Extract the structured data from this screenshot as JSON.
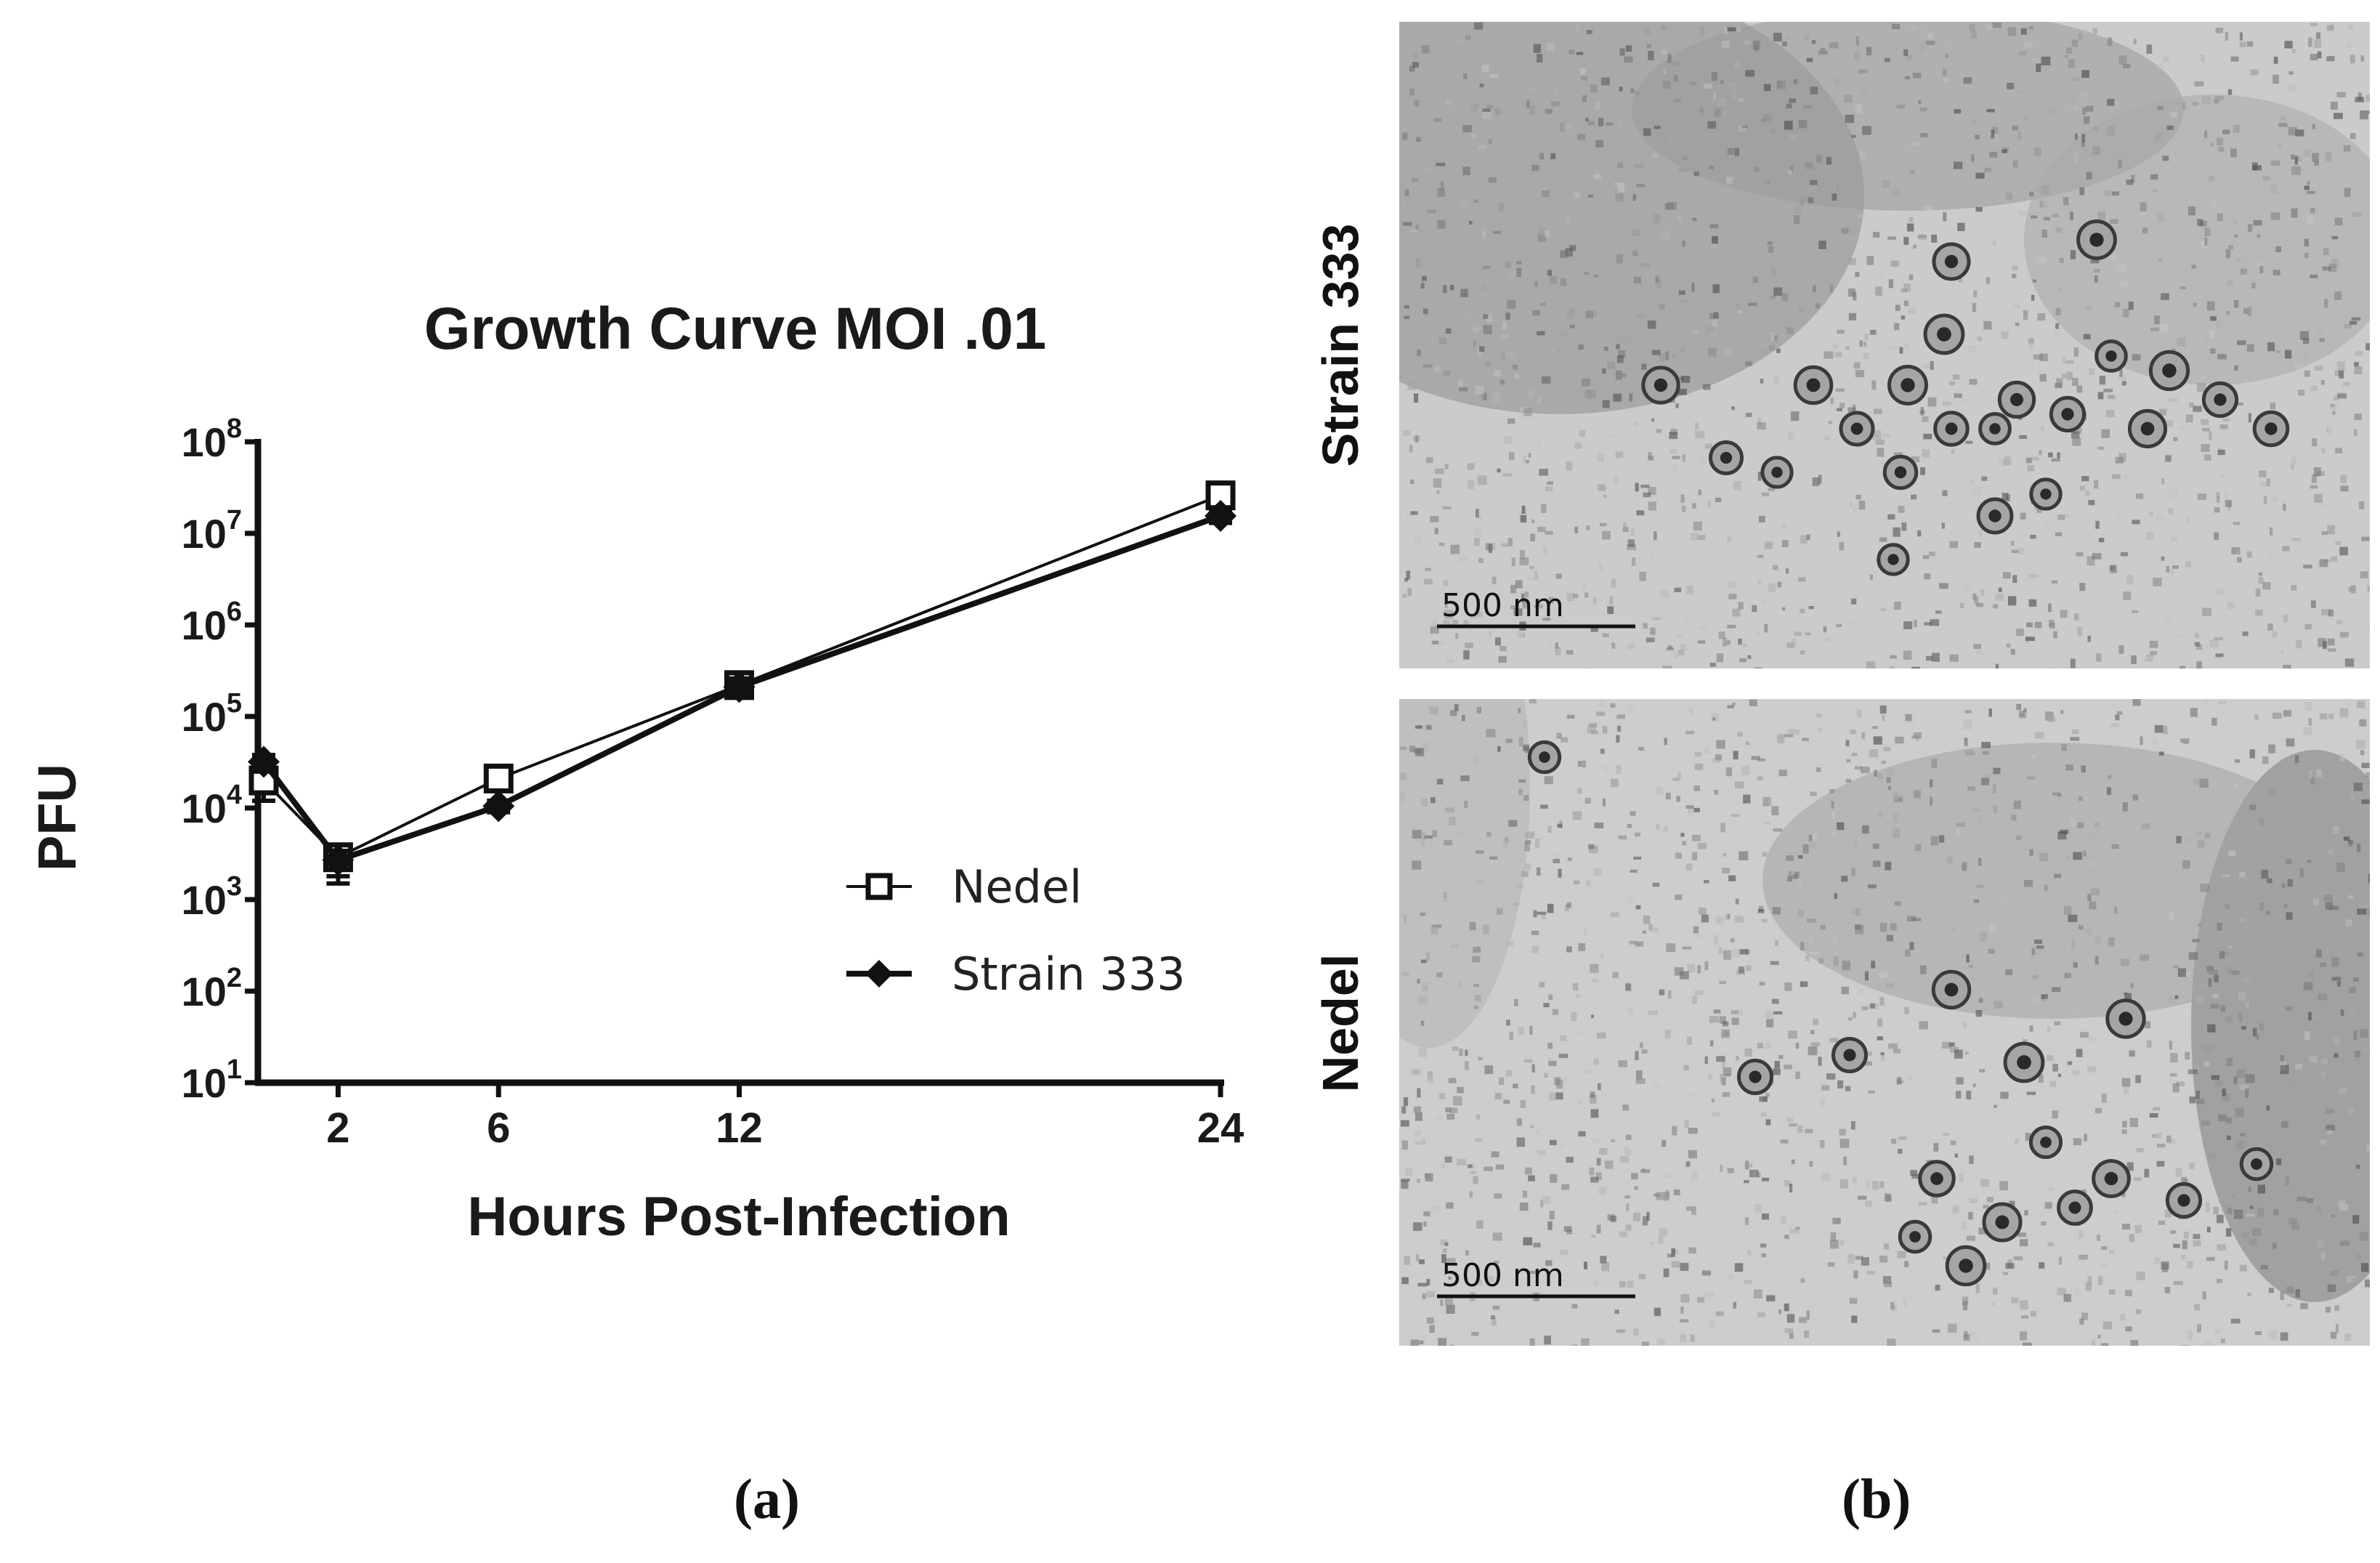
{
  "figure": {
    "panel_a_label": "(a)",
    "panel_b_label": "(b)"
  },
  "chart_data": {
    "type": "line",
    "title": "Growth  Curve MOI .01",
    "xlabel": "Hours Post-Infection",
    "ylabel": "PFU",
    "x_ticks": [
      "2",
      "6",
      "12",
      "24"
    ],
    "x_tick_values": [
      2,
      6,
      12,
      24
    ],
    "xlim": [
      0,
      24
    ],
    "y_scale": "log",
    "y_ticks": [
      {
        "base": "10",
        "exp": "1"
      },
      {
        "base": "10",
        "exp": "2"
      },
      {
        "base": "10",
        "exp": "3"
      },
      {
        "base": "10",
        "exp": "4"
      },
      {
        "base": "10",
        "exp": "5"
      },
      {
        "base": "10",
        "exp": "6"
      },
      {
        "base": "10",
        "exp": "7"
      },
      {
        "base": "10",
        "exp": "8"
      }
    ],
    "ylim": [
      10,
      100000000
    ],
    "legend_position": "right",
    "series": [
      {
        "name": "Nedel",
        "marker": "open-square",
        "x": [
          0,
          2,
          6,
          12,
          24
        ],
        "y": [
          20000,
          2900,
          21000,
          220000,
          26000000
        ],
        "err_low": [
          12000,
          1500,
          16000,
          170000,
          20000000
        ],
        "err_high": [
          26000,
          3600,
          26000,
          270000,
          32000000
        ]
      },
      {
        "name": "Strain 333",
        "marker": "filled-diamond",
        "x": [
          0,
          2,
          6,
          12,
          24
        ],
        "y": [
          32000,
          2700,
          10500,
          210000,
          15500000
        ],
        "err_low": [
          25000,
          1800,
          9000,
          170000,
          13000000
        ],
        "err_high": [
          38000,
          3400,
          12000,
          260000,
          18000000
        ]
      }
    ]
  },
  "micrographs": {
    "top_label": "Strain 333",
    "bottom_label": "Nedel",
    "top_scale": "500  nm",
    "bottom_scale": "500  nm"
  }
}
